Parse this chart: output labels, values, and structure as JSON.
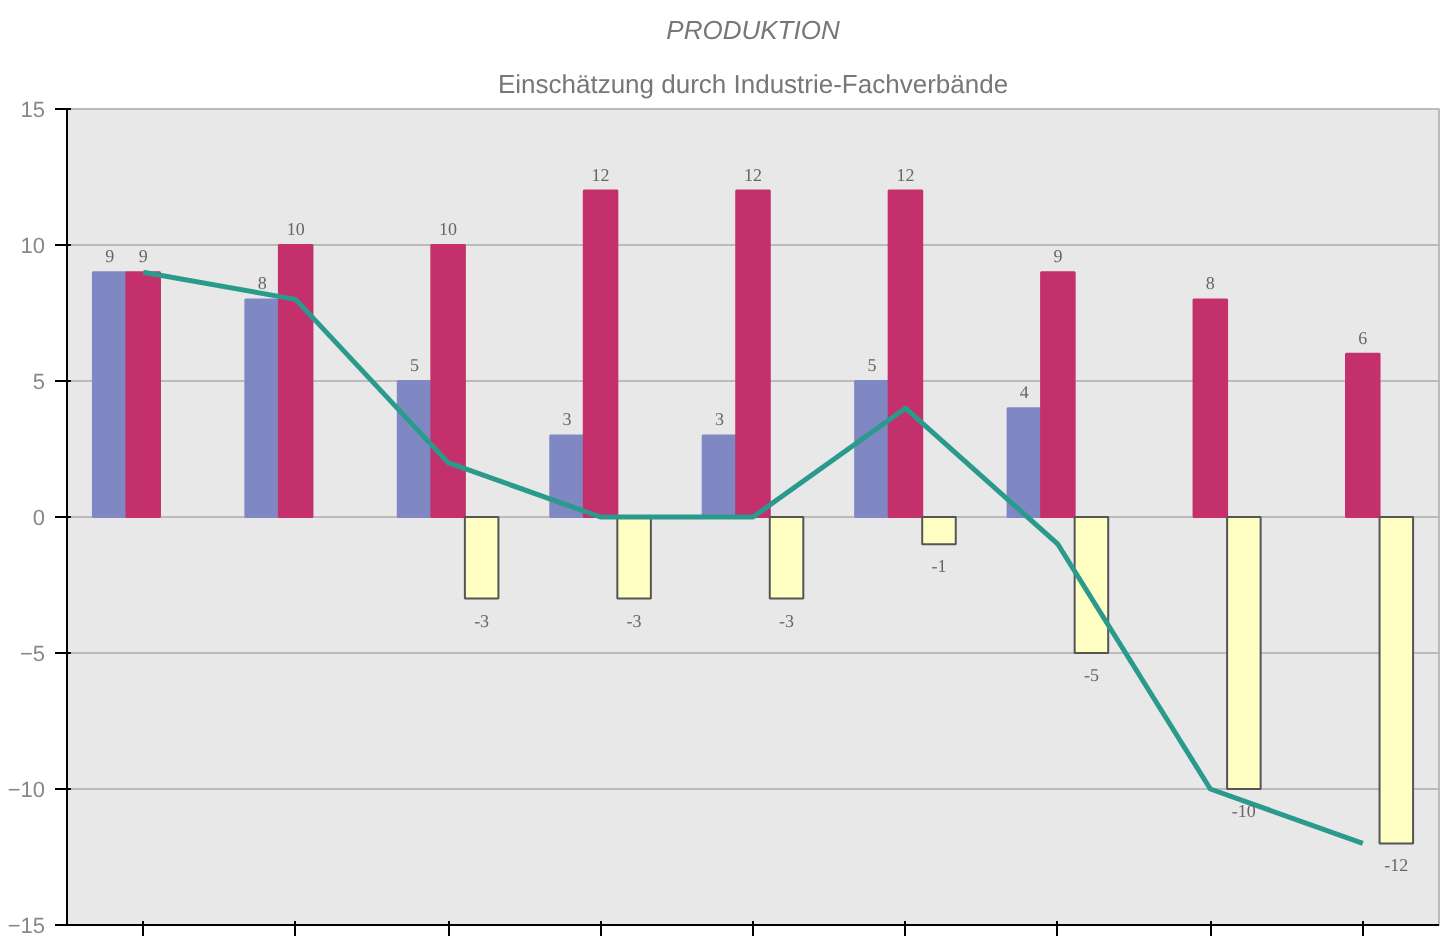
{
  "chart_data": {
    "type": "bar",
    "title": "PRODUKTION",
    "subtitle": "Einschätzung durch Industrie-Fachverbände",
    "categories": [
      null,
      null,
      null,
      null,
      null,
      null,
      null,
      null,
      null
    ],
    "series": [
      {
        "color": "#8088c4",
        "values": [
          9,
          8,
          5,
          3,
          3,
          5,
          4,
          null,
          null
        ],
        "value_labels": [
          "9",
          "8",
          "5",
          "3",
          "3",
          "5",
          "4",
          null,
          null
        ]
      },
      {
        "color": "#c4306c",
        "values": [
          9,
          10,
          10,
          12,
          12,
          12,
          9,
          8,
          6
        ],
        "value_labels": [
          "9",
          "10",
          "10",
          "12",
          "12",
          "12",
          "9",
          "8",
          "6"
        ]
      },
      {
        "color": "#ffffc4",
        "values": [
          null,
          null,
          -3,
          -3,
          -3,
          -1,
          -5,
          -10,
          -12
        ],
        "value_labels": [
          null,
          null,
          "-3",
          "-3",
          "-3",
          "-1",
          "-5",
          "-10",
          "-12"
        ]
      },
      {
        "type": "line",
        "color": "#2a9a8c",
        "values": [
          9,
          8,
          2,
          0,
          0,
          4,
          -1,
          -10,
          -12
        ]
      }
    ],
    "ylim": [
      -15,
      15
    ],
    "yticks": [
      -15,
      -10,
      -5,
      0,
      5,
      10,
      15
    ],
    "grid": "y"
  }
}
